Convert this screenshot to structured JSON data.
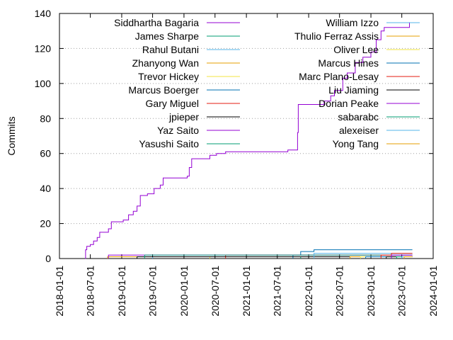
{
  "chart_data": {
    "type": "line",
    "title": "",
    "xlabel": "",
    "ylabel": "Commits",
    "x_ticks": [
      "2018-01-01",
      "2018-07-01",
      "2019-01-01",
      "2019-07-01",
      "2020-01-01",
      "2020-07-01",
      "2021-01-01",
      "2021-07-01",
      "2022-01-01",
      "2022-07-01",
      "2023-01-01",
      "2023-07-01",
      "2024-01-01"
    ],
    "xlim": [
      "2018-01-01",
      "2024-01-01"
    ],
    "ylim": [
      0,
      140
    ],
    "y_ticks": [
      0,
      20,
      40,
      60,
      80,
      100,
      120,
      140
    ],
    "grid": "horizontal dotted",
    "legend": "top, two columns",
    "series": [
      {
        "name": "Siddhartha Bagaria",
        "color": "#9400d3",
        "points": [
          [
            "2018-06-01",
            0
          ],
          [
            "2018-06-03",
            5
          ],
          [
            "2018-06-10",
            7
          ],
          [
            "2018-07-01",
            8
          ],
          [
            "2018-07-20",
            10
          ],
          [
            "2018-08-10",
            12
          ],
          [
            "2018-08-25",
            15
          ],
          [
            "2018-10-15",
            17
          ],
          [
            "2018-11-01",
            21
          ],
          [
            "2019-01-10",
            22
          ],
          [
            "2019-02-10",
            25
          ],
          [
            "2019-03-10",
            27
          ],
          [
            "2019-04-01",
            30
          ],
          [
            "2019-04-20",
            36
          ],
          [
            "2019-06-01",
            37
          ],
          [
            "2019-07-10",
            40
          ],
          [
            "2019-08-15",
            42
          ],
          [
            "2019-09-01",
            46
          ],
          [
            "2020-01-20",
            47
          ],
          [
            "2020-02-01",
            52
          ],
          [
            "2020-02-15",
            57
          ],
          [
            "2020-06-01",
            59
          ],
          [
            "2020-07-10",
            60
          ],
          [
            "2020-09-01",
            61
          ],
          [
            "2021-09-01",
            62
          ],
          [
            "2021-10-20",
            62
          ],
          [
            "2021-10-28",
            72
          ],
          [
            "2021-11-01",
            88
          ],
          [
            "2022-04-01",
            90
          ],
          [
            "2022-05-10",
            93
          ],
          [
            "2022-06-01",
            96
          ],
          [
            "2022-07-20",
            103
          ],
          [
            "2022-08-15",
            106
          ],
          [
            "2022-10-01",
            112
          ],
          [
            "2022-11-15",
            115
          ],
          [
            "2023-01-01",
            118
          ],
          [
            "2023-02-01",
            125
          ],
          [
            "2023-03-01",
            130
          ],
          [
            "2023-03-20",
            132
          ],
          [
            "2023-08-15",
            132
          ],
          [
            "2023-08-15",
            135
          ]
        ]
      },
      {
        "name": "James Sharpe",
        "color": "#009e73",
        "points": [
          [
            "2021-11-15",
            0
          ],
          [
            "2021-11-15",
            1
          ],
          [
            "2023-09-01",
            1
          ]
        ]
      },
      {
        "name": "Rahul Butani",
        "color": "#56b4e9",
        "points": [
          [
            "2019-07-01",
            0
          ],
          [
            "2019-07-01",
            1
          ],
          [
            "2023-09-01",
            1
          ]
        ]
      },
      {
        "name": "Zhanyong Wan",
        "color": "#e69f00",
        "points": [
          [
            "2018-10-10",
            0
          ],
          [
            "2018-10-10",
            1
          ],
          [
            "2023-09-01",
            1
          ]
        ]
      },
      {
        "name": "Trevor Hickey",
        "color": "#f0e442",
        "points": [
          [
            "2020-06-01",
            0
          ],
          [
            "2020-06-01",
            1
          ],
          [
            "2023-09-01",
            1
          ]
        ]
      },
      {
        "name": "Marcus Boerger",
        "color": "#0072b2",
        "points": [
          [
            "2021-10-01",
            0
          ],
          [
            "2021-10-01",
            2
          ],
          [
            "2021-11-15",
            2
          ],
          [
            "2021-11-15",
            4
          ],
          [
            "2022-02-01",
            4
          ],
          [
            "2022-02-01",
            5
          ],
          [
            "2023-09-01",
            5
          ]
        ]
      },
      {
        "name": "Gary Miguel",
        "color": "#e51e10",
        "points": [
          [
            "2020-09-01",
            0
          ],
          [
            "2020-09-01",
            2
          ],
          [
            "2023-09-01",
            2
          ]
        ]
      },
      {
        "name": "jpieper",
        "color": "#000000",
        "points": [
          [
            "2019-04-01",
            0
          ],
          [
            "2019-04-01",
            1
          ],
          [
            "2023-09-01",
            1
          ]
        ]
      },
      {
        "name": "Yaz Saito",
        "color": "#9400d3",
        "points": [
          [
            "2018-10-15",
            0
          ],
          [
            "2018-10-15",
            2
          ],
          [
            "2023-09-01",
            2
          ]
        ]
      },
      {
        "name": "Yasushi Saito",
        "color": "#009e73",
        "points": [
          [
            "2019-05-15",
            0
          ],
          [
            "2019-05-15",
            2
          ],
          [
            "2023-09-01",
            2
          ]
        ]
      },
      {
        "name": "William Izzo",
        "color": "#56b4e9",
        "points": [
          [
            "2022-02-01",
            0
          ],
          [
            "2022-02-01",
            3
          ],
          [
            "2023-09-01",
            3
          ]
        ]
      },
      {
        "name": "Thulio Ferraz Assis",
        "color": "#e69f00",
        "points": [
          [
            "2022-09-01",
            0
          ],
          [
            "2022-09-01",
            1
          ],
          [
            "2023-09-01",
            1
          ]
        ]
      },
      {
        "name": "Oliver Lee",
        "color": "#f0e442",
        "points": [
          [
            "2022-11-01",
            0
          ],
          [
            "2022-11-01",
            1
          ],
          [
            "2023-09-01",
            1
          ]
        ]
      },
      {
        "name": "Marcus Hines",
        "color": "#0072b2",
        "points": [
          [
            "2022-12-01",
            0
          ],
          [
            "2022-12-01",
            1
          ],
          [
            "2023-09-01",
            1
          ]
        ]
      },
      {
        "name": "Marc Plano-Lesay",
        "color": "#e51e10",
        "points": [
          [
            "2023-03-01",
            0
          ],
          [
            "2023-03-01",
            2
          ],
          [
            "2023-05-01",
            2
          ],
          [
            "2023-05-01",
            3
          ],
          [
            "2023-09-01",
            3
          ]
        ]
      },
      {
        "name": "Liu Jiaming",
        "color": "#000000",
        "points": [
          [
            "2023-04-01",
            0
          ],
          [
            "2023-04-01",
            1
          ],
          [
            "2023-09-01",
            1
          ]
        ]
      },
      {
        "name": "Dorian Peake",
        "color": "#9400d3",
        "points": [
          [
            "2023-05-01",
            0
          ],
          [
            "2023-05-01",
            2
          ],
          [
            "2023-09-01",
            2
          ]
        ]
      },
      {
        "name": "sabarabc",
        "color": "#009e73",
        "points": [
          [
            "2023-06-01",
            0
          ],
          [
            "2023-06-01",
            1
          ],
          [
            "2023-09-01",
            1
          ]
        ]
      },
      {
        "name": "alexeiser",
        "color": "#56b4e9",
        "points": [
          [
            "2023-07-01",
            0
          ],
          [
            "2023-07-01",
            1
          ],
          [
            "2023-09-01",
            1
          ]
        ]
      },
      {
        "name": "Yong Tang",
        "color": "#e69f00",
        "points": [
          [
            "2023-07-15",
            0
          ],
          [
            "2023-07-15",
            1
          ],
          [
            "2023-09-01",
            1
          ]
        ]
      }
    ]
  }
}
